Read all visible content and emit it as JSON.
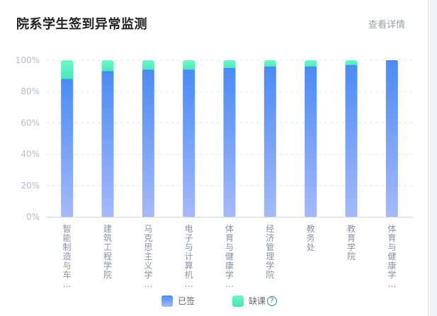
{
  "header": {
    "title": "院系学生签到异常监测",
    "detail_link": "查看详情"
  },
  "colors": {
    "signed_top": "#4a8cf5",
    "signed_bottom": "#a5b9fb",
    "absent_top": "#6ff7c8",
    "absent_bottom": "#3fe6b4"
  },
  "legend": {
    "signed_label": "已签",
    "absent_label": "缺课",
    "help_icon": "question-circle-icon"
  },
  "chart_data": {
    "type": "bar",
    "stacked": true,
    "title": "院系学生签到异常监测",
    "categories": [
      "智能制造与车...",
      "建筑工程学院",
      "马克思主义学...",
      "电子与计算机...",
      "体育与健康学...",
      "经济管理学院",
      "教务处",
      "教育学院",
      "体育与健康学..."
    ],
    "category_labels": [
      [
        "智",
        "能",
        "制",
        "造",
        "与",
        "车",
        "…"
      ],
      [
        "建",
        "筑",
        "工",
        "程",
        "学",
        "院"
      ],
      [
        "马",
        "克",
        "思",
        "主",
        "义",
        "学",
        "…"
      ],
      [
        "电",
        "子",
        "与",
        "计",
        "算",
        "机",
        "…"
      ],
      [
        "体",
        "育",
        "与",
        "健",
        "康",
        "学",
        "…"
      ],
      [
        "经",
        "济",
        "管",
        "理",
        "学",
        "院"
      ],
      [
        "教",
        "务",
        "处"
      ],
      [
        "教",
        "育",
        "学",
        "院"
      ],
      [
        "体",
        "育",
        "与",
        "健",
        "康",
        "学",
        "…"
      ]
    ],
    "series": [
      {
        "name": "已签",
        "values": [
          88,
          93,
          94,
          94,
          95,
          96,
          96,
          97,
          100
        ]
      },
      {
        "name": "缺课",
        "values": [
          12,
          7,
          6,
          6,
          5,
          4,
          4,
          3,
          0
        ]
      }
    ],
    "ylim": [
      0,
      100
    ],
    "yticks": [
      "0%",
      "20%",
      "40%",
      "60%",
      "80%",
      "100%"
    ],
    "grid": true
  }
}
